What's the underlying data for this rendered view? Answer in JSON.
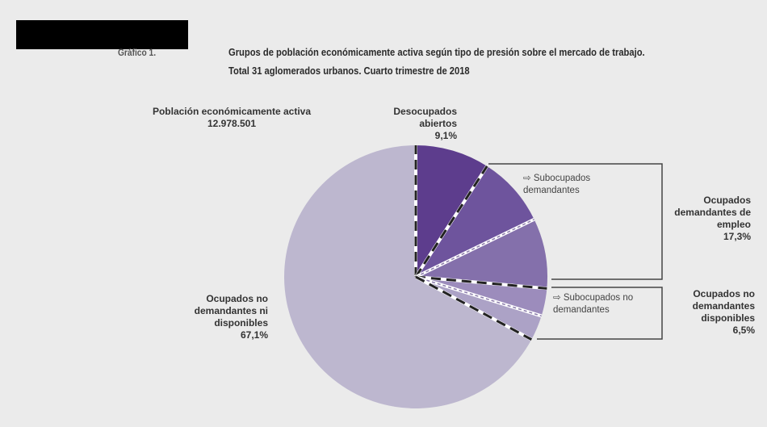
{
  "figure_label": "Gráfico 1.",
  "chart_data": {
    "type": "pie",
    "title": "Grupos de población económicamente activa según tipo de presión sobre el mercado de trabajo.",
    "subtitle": "Total 31 aglomerados urbanos. Cuarto trimestre de 2018",
    "total_label": "Población económicamente activa",
    "total_value": "12.978.501",
    "start": "top, clockwise",
    "groups": [
      {
        "name": "Desocupados abiertos",
        "value": 9.1,
        "value_label": "9,1%",
        "color": "#5d3d8d"
      },
      {
        "name": "Ocupados demandantes de empleo",
        "value": 17.3,
        "value_label": "17,3%",
        "sub_label": "Subocupados demandantes"
      },
      {
        "name": "Ocupados no demandantes disponibles",
        "value": 6.5,
        "value_label": "6,5%",
        "sub_label": "Subocupados no demandantes"
      },
      {
        "name": "Ocupados no demandantes ni disponibles",
        "value": 67.1,
        "value_label": "67,1%",
        "color": "#bdb7cf"
      }
    ],
    "slices": [
      {
        "group": 0,
        "value": 9.1,
        "color": "#5d3d8d"
      },
      {
        "group": 1,
        "value": 8.7,
        "color": "#6e549d"
      },
      {
        "group": 1,
        "value": 8.6,
        "color": "#8470ab"
      },
      {
        "group": 2,
        "value": 3.4,
        "color": "#9c8cbc"
      },
      {
        "group": 2,
        "value": 3.1,
        "color": "#aca2c6"
      },
      {
        "group": 3,
        "value": 67.1,
        "color": "#bdb7cf"
      }
    ]
  }
}
